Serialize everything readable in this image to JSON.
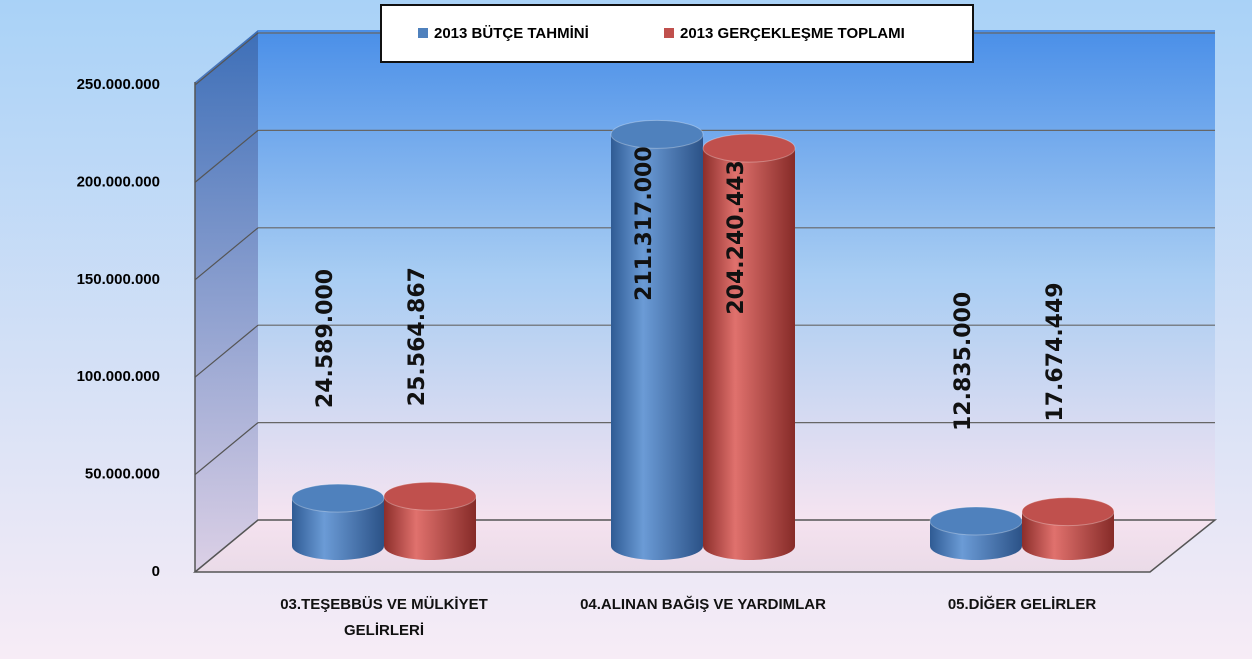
{
  "chart_data": {
    "type": "bar",
    "categories": [
      "03.TEŞEBBÜS VE MÜLKİYET GELİRLERİ",
      "04.ALINAN BAĞIŞ VE YARDIMLAR",
      "05.DİĞER GELİRLER"
    ],
    "series": [
      {
        "name": "2013 BÜTÇE TAHMİNİ",
        "color": "#4f81bd",
        "values": [
          24589000,
          211317000,
          12835000
        ],
        "value_labels": [
          "24.589.000",
          "211.317.000",
          "12.835.000"
        ]
      },
      {
        "name": "2013 GERÇEKLEŞME TOPLAMI",
        "color": "#c0504d",
        "values": [
          25564867,
          204240443,
          17674449
        ],
        "value_labels": [
          "25.564.867",
          "204.240.443",
          "17.674.449"
        ]
      }
    ],
    "ylim": [
      0,
      250000000
    ],
    "yticks": [
      0,
      {
        "value": 50000000,
        "label": "50.000.000"
      },
      {
        "value": 100000000,
        "label": "100.000.000"
      },
      {
        "value": 150000000,
        "label": "150.000.000"
      },
      {
        "value": 200000000,
        "label": "200.000.000"
      },
      {
        "value": 250000000,
        "label": "250.000.000"
      }
    ],
    "grid": true,
    "legend": "top"
  }
}
